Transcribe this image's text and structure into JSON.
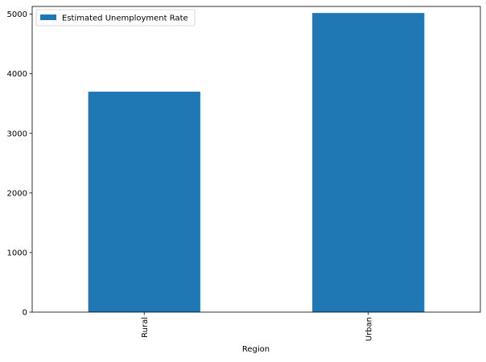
{
  "chart_data": {
    "type": "bar",
    "categories": [
      "Rural",
      "Urban"
    ],
    "series": [
      {
        "name": "Estimated Unemployment Rate",
        "values": [
          3700,
          5020
        ],
        "color": "#1f77b4"
      }
    ],
    "xlabel": "Region",
    "ylabel": "",
    "ylim": [
      0,
      5130
    ],
    "yticks": [
      0,
      1000,
      2000,
      3000,
      4000,
      5000
    ],
    "grid": false,
    "legend": "top-left"
  }
}
